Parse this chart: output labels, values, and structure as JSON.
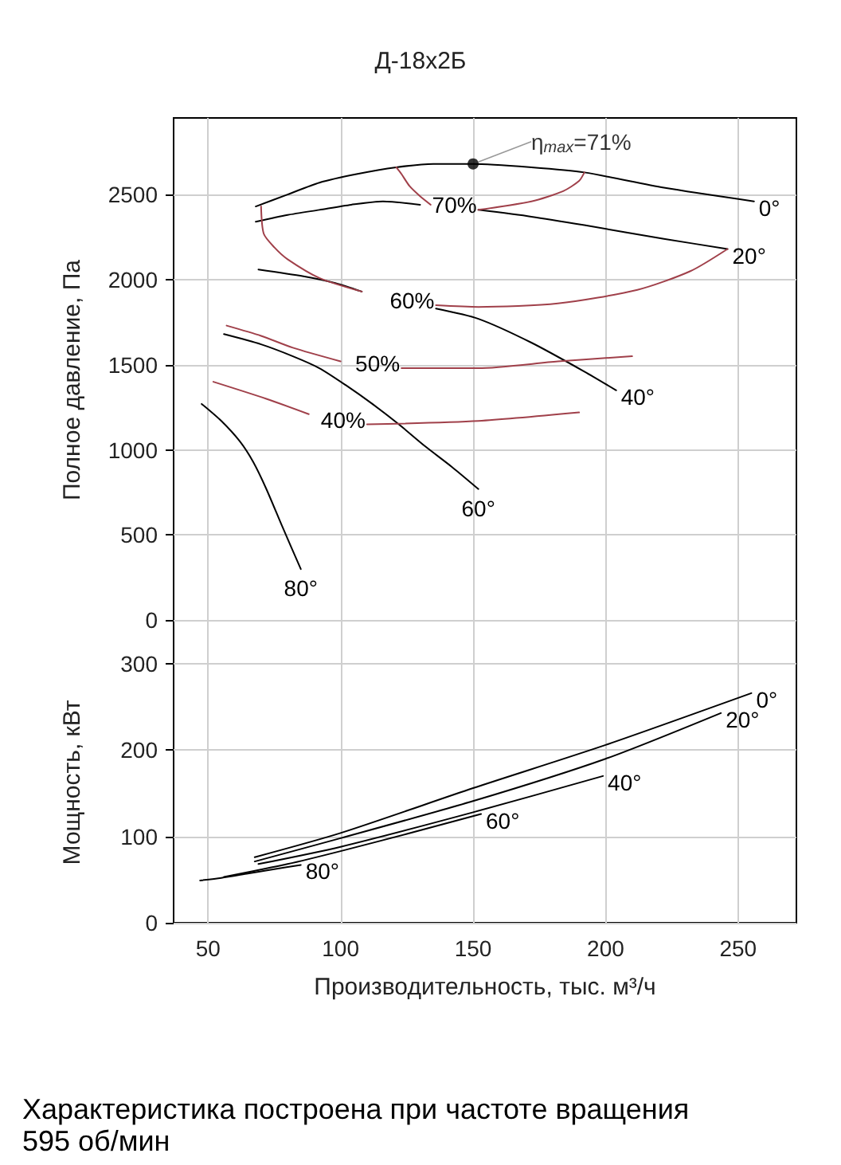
{
  "chart_data": [
    {
      "type": "line",
      "title": "Д-18х2Б",
      "ylabel": "Полное давление, Па",
      "xlim": [
        37,
        272
      ],
      "xticks": [
        50,
        100,
        150,
        200,
        250
      ],
      "ylim": [
        -130,
        2950
      ],
      "yticks": [
        0,
        500,
        1000,
        1500,
        2000,
        2500
      ],
      "tick_labels": "y",
      "grid": true,
      "marker": "none",
      "line_style": "solid",
      "series": [
        {
          "name": "0°",
          "color": "#000000",
          "x": [
            68,
            80,
            92,
            106,
            121,
            135,
            150,
            172,
            192,
            222,
            256
          ],
          "values": [
            2430,
            2500,
            2570,
            2620,
            2660,
            2680,
            2680,
            2660,
            2630,
            2540,
            2460
          ]
        },
        {
          "name": "20°",
          "color": "#000000",
          "x": [
            68,
            80,
            92,
            104,
            116,
            130,
            141,
            152,
            172,
            192,
            222,
            246
          ],
          "values": [
            2340,
            2380,
            2410,
            2440,
            2460,
            2440,
            null,
            2410,
            2370,
            2320,
            2240,
            2180
          ]
        },
        {
          "name": "40°",
          "color": "#000000",
          "x": [
            69,
            86,
            98,
            108,
            122,
            136,
            152,
            172,
            192,
            204
          ],
          "values": [
            2060,
            2020,
            1980,
            1930,
            null,
            1830,
            1770,
            1630,
            1460,
            1350
          ]
        },
        {
          "name": "60°",
          "color": "#000000",
          "x": [
            56,
            70,
            82,
            92,
            102,
            112,
            122,
            132,
            142,
            152
          ],
          "values": [
            1680,
            1620,
            1550,
            1480,
            1380,
            1270,
            1150,
            1020,
            900,
            770
          ]
        },
        {
          "name": "80°",
          "color": "#000000",
          "x": [
            47.6,
            55,
            62,
            67,
            72,
            78,
            85
          ],
          "values": [
            1270,
            1170,
            1050,
            930,
            770,
            550,
            300
          ]
        },
        {
          "color": "#a0404a",
          "x": [
            121,
            123,
            126,
            130,
            134,
            143,
            152,
            172,
            184,
            190,
            192
          ],
          "values": [
            2660,
            2620,
            2550,
            2490,
            2440,
            null,
            2410,
            2460,
            2520,
            2580,
            2630
          ]
        },
        {
          "color": "#a0404a",
          "x": [
            70,
            71,
            75,
            80,
            92,
            108,
            125,
            136,
            152,
            182,
            212,
            232,
            246
          ],
          "values": [
            2430,
            2270,
            2190,
            2120,
            2010,
            1930,
            null,
            1850,
            1840,
            1860,
            1940,
            2050,
            2180
          ]
        },
        {
          "color": "#a0404a",
          "x": [
            57,
            70,
            82,
            100,
            112,
            123,
            152,
            182,
            210
          ],
          "values": [
            1730,
            1670,
            1600,
            1520,
            null,
            1480,
            1480,
            1520,
            1550
          ]
        },
        {
          "color": "#a0404a",
          "x": [
            52,
            72,
            88,
            99,
            110,
            152,
            190
          ],
          "values": [
            1400,
            1300,
            1210,
            null,
            1150,
            1170,
            1220
          ]
        },
        {
          "type": "scatter",
          "name": "η$_{max}$=71%",
          "color": "#000000",
          "marker": "circle",
          "x": [
            150
          ],
          "values": [
            2680
          ]
        }
      ],
      "annotations": [
        {
          "text": "70%",
          "x": 152,
          "y": 2410
        },
        {
          "text": "60%",
          "x": 136,
          "y": 1850
        },
        {
          "text": "50%",
          "x": 123,
          "y": 1480
        },
        {
          "text": "40%",
          "x": 110,
          "y": 1150
        }
      ]
    },
    {
      "type": "line",
      "xlabel": "Производительность, тыс. м³/ч",
      "ylabel": "Мощность, кВт",
      "xlim": [
        37,
        272
      ],
      "xticks": [
        50,
        100,
        150,
        200,
        250
      ],
      "ylim": [
        0,
        325
      ],
      "yticks": [
        0,
        100,
        200,
        300
      ],
      "grid": true,
      "marker": "none",
      "line_style": "solid",
      "series": [
        {
          "name": "0°",
          "color": "#000000",
          "x": [
            67.6,
            100,
            150,
            200,
            255
          ],
          "values": [
            76,
            104,
            156,
            206,
            266
          ]
        },
        {
          "name": "20°",
          "color": "#000000",
          "x": [
            67.6,
            100,
            150,
            200,
            243.5
          ],
          "values": [
            71,
            98,
            141,
            190,
            243
          ]
        },
        {
          "name": "40°",
          "color": "#000000",
          "x": [
            69,
            100,
            150,
            199
          ],
          "values": [
            68,
            88,
            128,
            170
          ]
        },
        {
          "name": "60°",
          "color": "#000000",
          "x": [
            56,
            80,
            100,
            125,
            153
          ],
          "values": [
            53,
            68,
            83,
            103,
            126
          ]
        },
        {
          "name": "80°",
          "color": "#000000",
          "x": [
            47,
            55,
            65,
            75,
            85
          ],
          "values": [
            49,
            52,
            57,
            62,
            67
          ]
        }
      ],
      "annotations": [
        "Характеристика построена при частоте вращения 595 об/мин"
      ]
    }
  ]
}
